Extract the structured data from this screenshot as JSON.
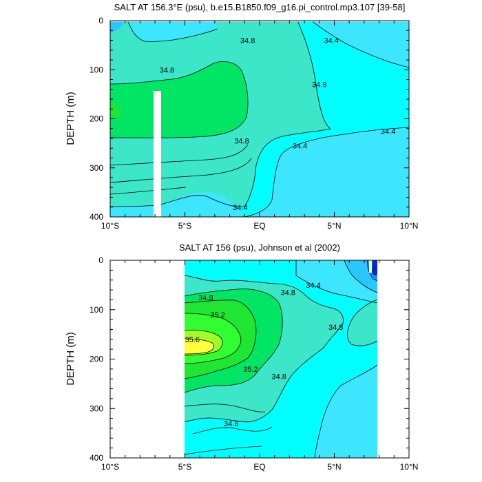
{
  "colors": {
    "c34_0": "#1e8cff",
    "c34_2": "#28c8ff",
    "c34_4": "#3ce6ff",
    "c34_6": "#00ffff",
    "c34_8": "#3ce6c8",
    "c35_0": "#00e664",
    "c35_2": "#1ee632",
    "c35_4": "#32ff32",
    "c35_6": "#a0ff28",
    "c35_8": "#ffff3c",
    "dark_blue": "#0a28c8",
    "blank": "#ffffff"
  },
  "chart_data": [
    {
      "type": "contour",
      "title": "SALT AT 156.3°E (psu), b.e15.B1850.f09_g16.pi_control.mp3.107 [39-58]",
      "ylabel": "DEPTH (m)",
      "x_ticks": [
        "10°S",
        "5°S",
        "EQ",
        "5°N",
        "10°N"
      ],
      "y_ticks": [
        "0",
        "100",
        "200",
        "300",
        "400"
      ],
      "xlim": [
        -10,
        10
      ],
      "ylim": [
        400,
        0
      ],
      "contour_labels": [
        {
          "text": "34.8",
          "x": -0.8,
          "y": 40
        },
        {
          "text": "34.8",
          "x": -6.2,
          "y": 100
        },
        {
          "text": "34.8",
          "x": 4.0,
          "y": 130
        },
        {
          "text": "34.8",
          "x": -1.2,
          "y": 245
        },
        {
          "text": "34.4",
          "x": 4.8,
          "y": 40
        },
        {
          "text": "34.4",
          "x": 2.7,
          "y": 255
        },
        {
          "text": "34.4",
          "x": 8.6,
          "y": 225
        },
        {
          "text": "34.4",
          "x": -1.3,
          "y": 380
        }
      ]
    },
    {
      "type": "contour",
      "title": "SALT AT 156 (psu), Johnson et al (2002)",
      "ylabel": "DEPTH (m)",
      "x_ticks": [
        "10°S",
        "5°S",
        "EQ",
        "5°N",
        "10°N"
      ],
      "y_ticks": [
        "0",
        "100",
        "200",
        "300",
        "400"
      ],
      "xlim": [
        -10,
        10
      ],
      "ylim": [
        400,
        0
      ],
      "data_extent_x": [
        -5,
        8
      ],
      "contour_labels": [
        {
          "text": "34.8",
          "x": -3.6,
          "y": 75
        },
        {
          "text": "34.8",
          "x": 1.9,
          "y": 65
        },
        {
          "text": "34.4",
          "x": 3.6,
          "y": 50
        },
        {
          "text": "34.8",
          "x": 5.1,
          "y": 135
        },
        {
          "text": "35.2",
          "x": -2.8,
          "y": 110
        },
        {
          "text": "35.6",
          "x": -4.5,
          "y": 160
        },
        {
          "text": "35.2",
          "x": -0.6,
          "y": 220
        },
        {
          "text": "34.8",
          "x": 1.3,
          "y": 235
        },
        {
          "text": "34.8",
          "x": -1.9,
          "y": 330
        }
      ]
    }
  ]
}
